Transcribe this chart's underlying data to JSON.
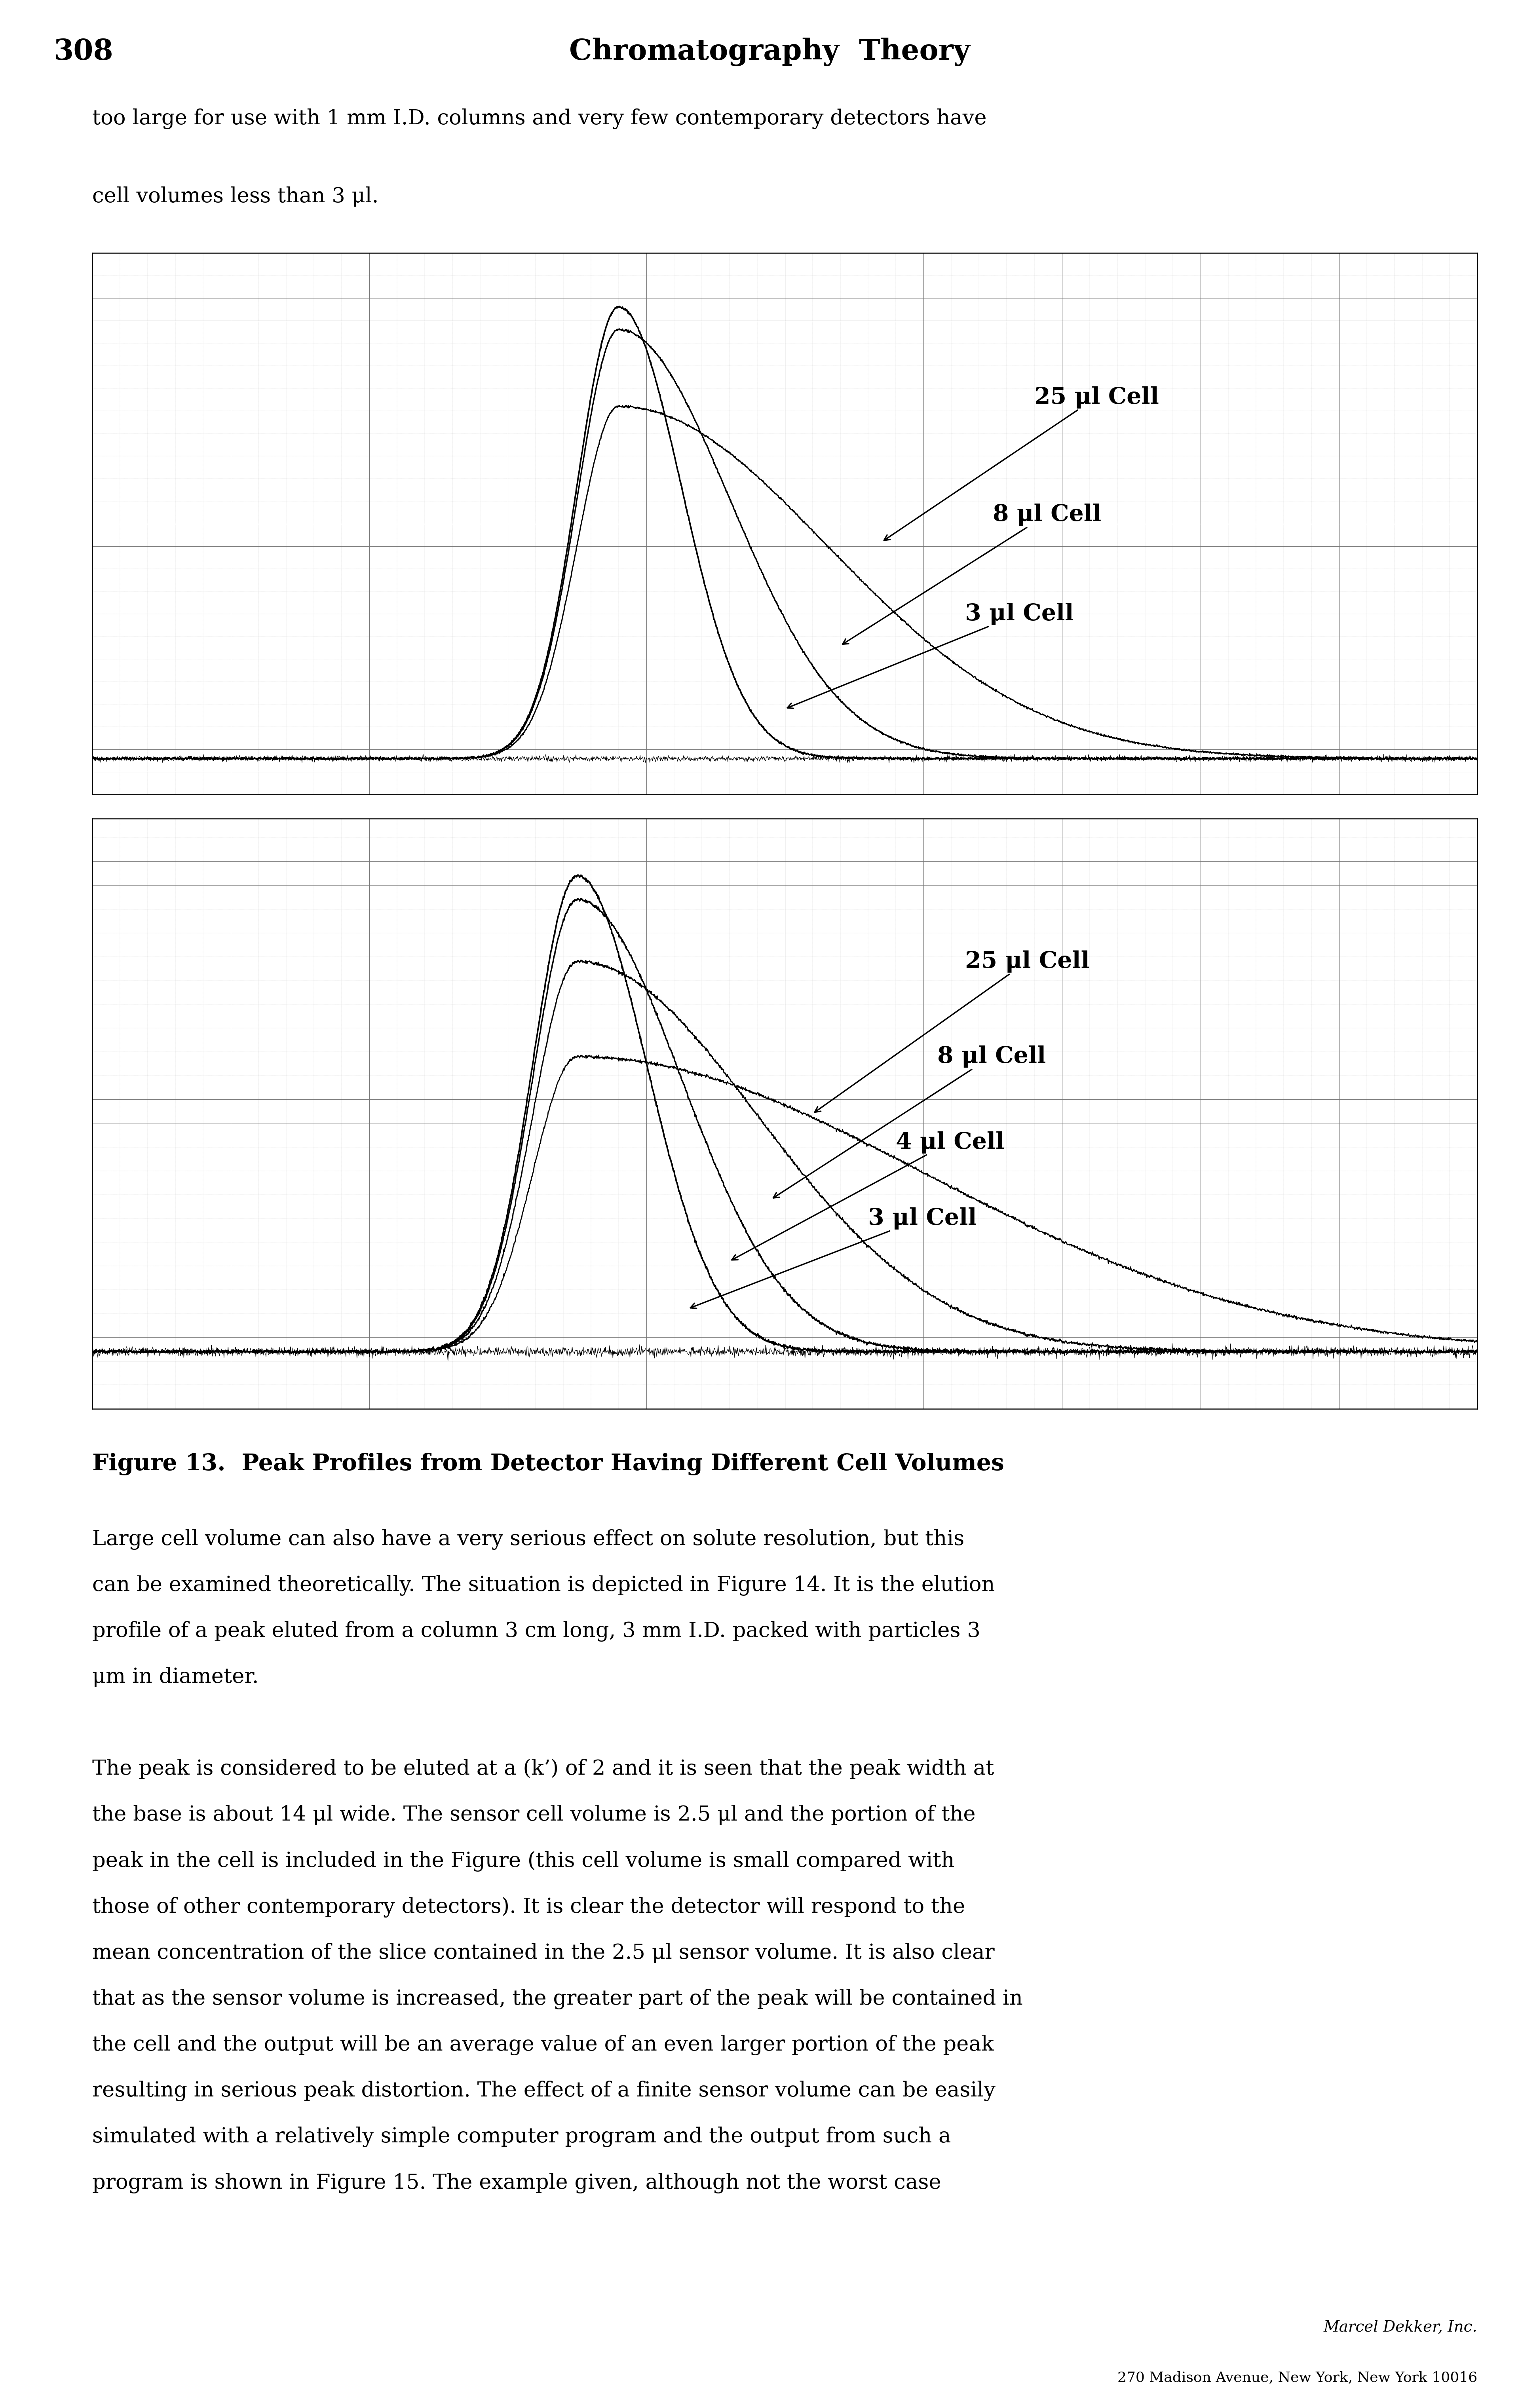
{
  "page_number": "308",
  "header_title": "Chromatography  Theory",
  "intro_text_line1": "too large for use with 1 mm I.D. columns and very few contemporary detectors have",
  "intro_text_line2": "cell volumes less than 3 μl.",
  "figure_caption": "Figure 13.  Peak Profiles from Detector Having Different Cell Volumes",
  "body_text": [
    "Large cell volume can also have a very serious effect on solute resolution, but this",
    "can be examined theoretically. The situation is depicted in Figure 14. It is the elution",
    "profile of a peak eluted from a column 3 cm long, 3 mm I.D. packed with particles 3",
    "μm in diameter.",
    "",
    "The peak is considered to be eluted at a (k’) of 2 and it is seen that the peak width at",
    "the base is about 14 μl wide. The sensor cell volume is 2.5 μl and the portion of the",
    "peak in the cell is included in the Figure (this cell volume is small compared with",
    "those of other contemporary detectors). It is clear the detector will respond to the",
    "mean concentration of the slice contained in the 2.5 μl sensor volume. It is also clear",
    "that as the sensor volume is increased, the greater part of the peak will be contained in",
    "the cell and the output will be an average value of an even larger portion of the peak",
    "resulting in serious peak distortion. The effect of a finite sensor volume can be easily",
    "simulated with a relatively simple computer program and the output from such a",
    "program is shown in Figure 15. The example given, although not the worst case"
  ],
  "footer_text1": "Marcel Dekker, Inc.",
  "footer_text2": "270 Madison Avenue, New York, New York 10016",
  "plot1_labels": [
    "25 μl Cell",
    "8 μl Cell",
    "3 μl Cell"
  ],
  "plot2_labels": [
    "25 μl Cell",
    "8 μl Cell",
    "4 μl Cell",
    "3 μl Cell"
  ],
  "background_color": "#ffffff",
  "line_color": "#000000",
  "grid_color": "#aaaaaa",
  "text_color": "#000000",
  "label_fontsize": 42,
  "header_fontsize": 52,
  "body_fontsize": 38,
  "caption_fontsize": 42
}
